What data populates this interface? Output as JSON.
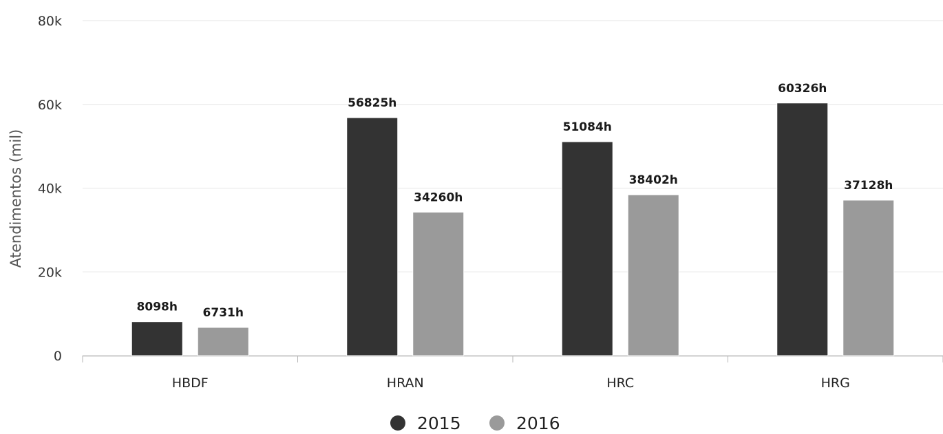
{
  "chart_data": {
    "type": "bar",
    "title": "",
    "xlabel": "",
    "ylabel": "Atendimentos (mil)",
    "ylim": [
      0,
      80000
    ],
    "yticks": [
      {
        "value": 0,
        "label": "0"
      },
      {
        "value": 20000,
        "label": "20k"
      },
      {
        "value": 40000,
        "label": "40k"
      },
      {
        "value": 60000,
        "label": "60k"
      },
      {
        "value": 80000,
        "label": "80k"
      }
    ],
    "categories": [
      "HBDF",
      "HRAN",
      "HRC",
      "HRG"
    ],
    "series": [
      {
        "name": "2015",
        "color": "#333333",
        "values": [
          8098,
          56825,
          51084,
          60326
        ],
        "labels": [
          "8098h",
          "56825h",
          "51084h",
          "60326h"
        ]
      },
      {
        "name": "2016",
        "color": "#9a9a9a",
        "values": [
          6731,
          34260,
          38402,
          37128
        ],
        "labels": [
          "6731h",
          "34260h",
          "38402h",
          "37128h"
        ]
      }
    ],
    "grid": true,
    "legend_position": "bottom-center"
  }
}
